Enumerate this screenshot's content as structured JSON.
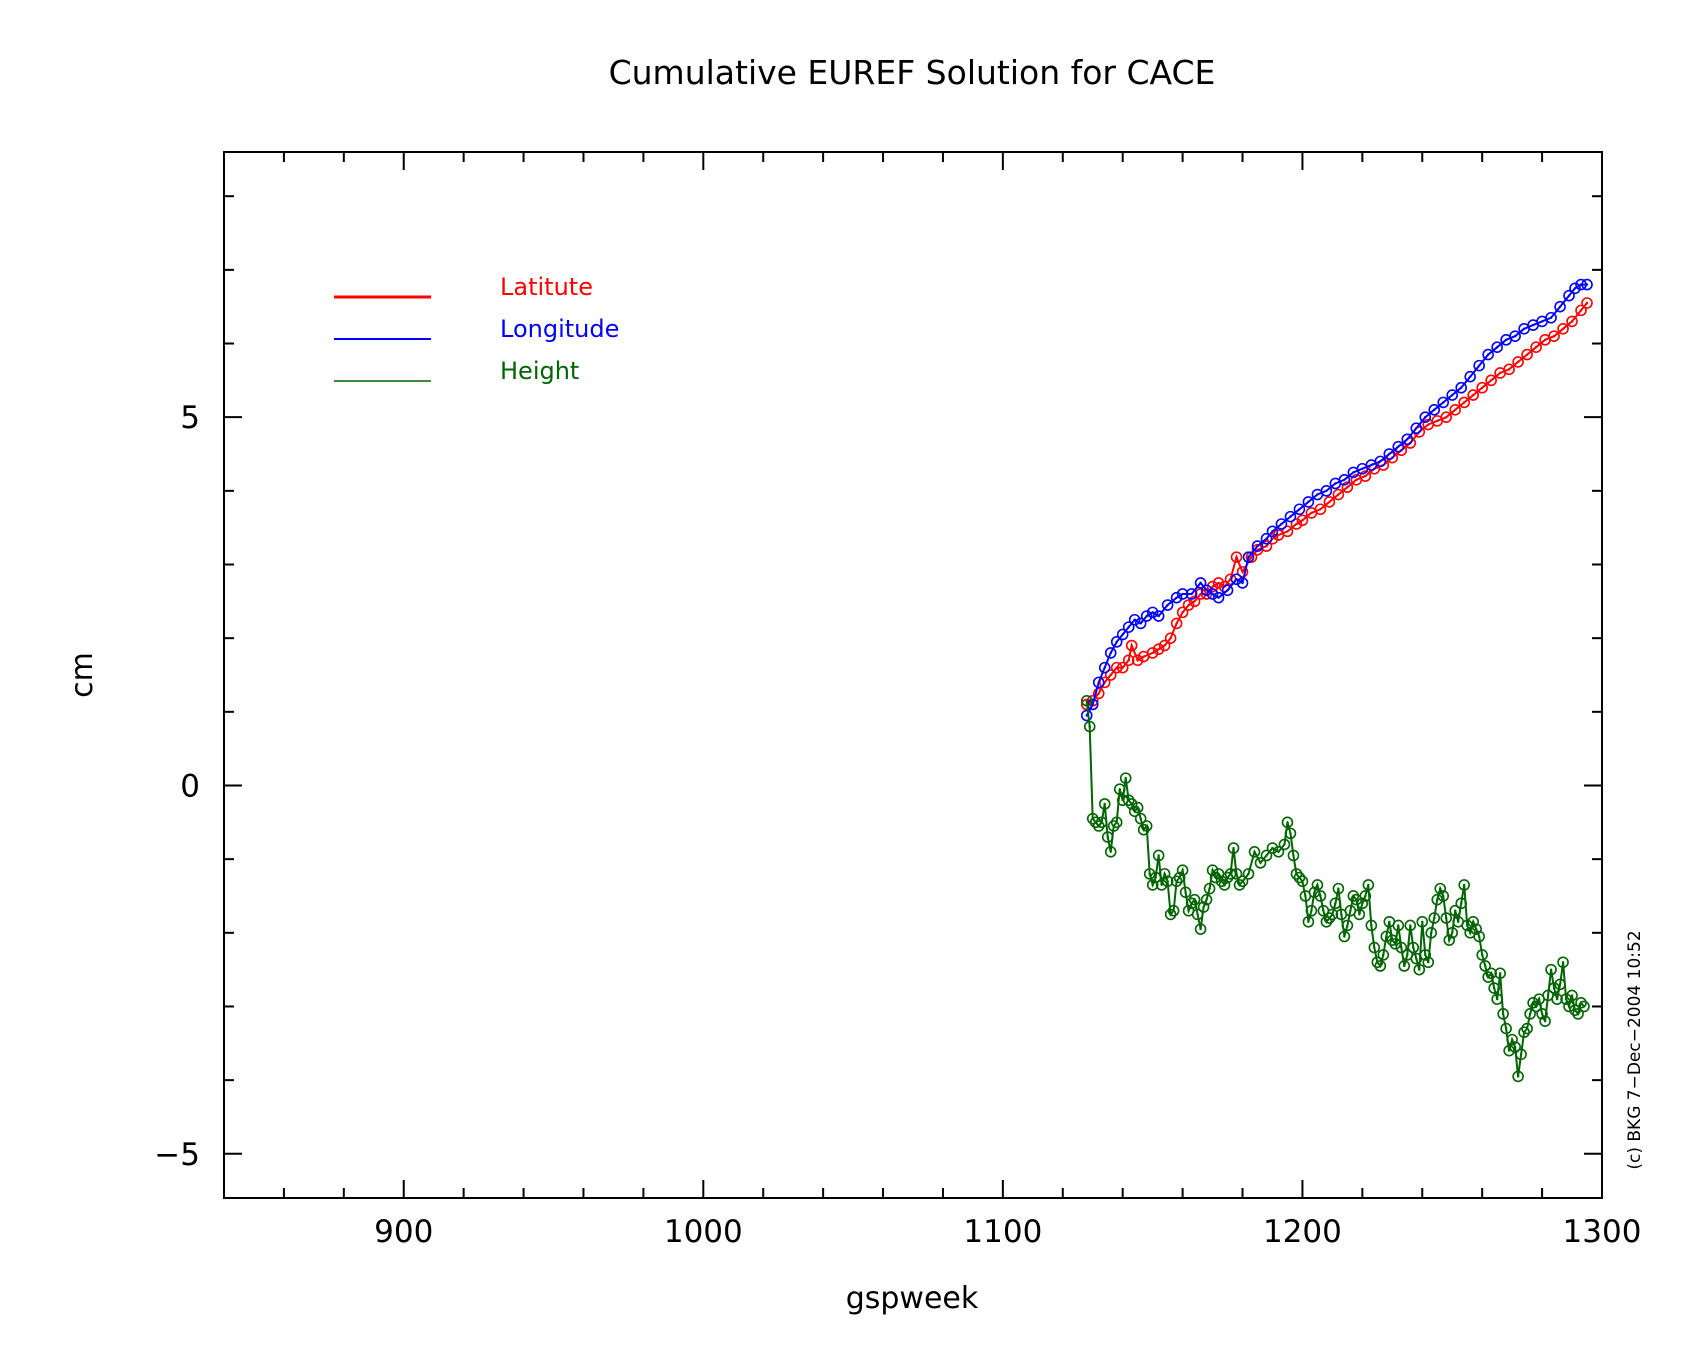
{
  "chart_data": {
    "type": "line",
    "title": "Cumulative EUREF Solution for CACE",
    "xlabel": "gspweek",
    "ylabel": "cm",
    "xlim": [
      840,
      1300
    ],
    "ylim": [
      -5.6,
      8.6
    ],
    "x_ticks": [
      900,
      1000,
      1100,
      1200,
      1300
    ],
    "x_tick_labels": [
      "900",
      "1000",
      "1100",
      "1200",
      "1300"
    ],
    "y_ticks": [
      -5,
      0,
      5
    ],
    "y_tick_labels": [
      "−5",
      "0",
      "5"
    ],
    "grid": false,
    "legend_position": "top-left",
    "credit": "(c) BKG 7−Dec−2004 10:52",
    "series": [
      {
        "name": "Latitute",
        "color": "#ff0000",
        "marker": "circle",
        "points": [
          [
            1128,
            1.1
          ],
          [
            1130,
            1.15
          ],
          [
            1132,
            1.25
          ],
          [
            1134,
            1.4
          ],
          [
            1136,
            1.5
          ],
          [
            1138,
            1.6
          ],
          [
            1140,
            1.6
          ],
          [
            1142,
            1.7
          ],
          [
            1143,
            1.9
          ],
          [
            1145,
            1.7
          ],
          [
            1147,
            1.75
          ],
          [
            1150,
            1.8
          ],
          [
            1152,
            1.85
          ],
          [
            1154,
            1.9
          ],
          [
            1156,
            2.0
          ],
          [
            1158,
            2.2
          ],
          [
            1160,
            2.35
          ],
          [
            1162,
            2.45
          ],
          [
            1164,
            2.5
          ],
          [
            1166,
            2.6
          ],
          [
            1168,
            2.6
          ],
          [
            1170,
            2.7
          ],
          [
            1172,
            2.75
          ],
          [
            1174,
            2.7
          ],
          [
            1176,
            2.8
          ],
          [
            1178,
            3.1
          ],
          [
            1180,
            2.9
          ],
          [
            1183,
            3.1
          ],
          [
            1185,
            3.2
          ],
          [
            1188,
            3.25
          ],
          [
            1190,
            3.35
          ],
          [
            1192,
            3.4
          ],
          [
            1195,
            3.45
          ],
          [
            1198,
            3.55
          ],
          [
            1200,
            3.6
          ],
          [
            1203,
            3.7
          ],
          [
            1206,
            3.75
          ],
          [
            1209,
            3.85
          ],
          [
            1212,
            3.95
          ],
          [
            1215,
            4.05
          ],
          [
            1218,
            4.15
          ],
          [
            1221,
            4.2
          ],
          [
            1224,
            4.3
          ],
          [
            1227,
            4.35
          ],
          [
            1230,
            4.45
          ],
          [
            1233,
            4.55
          ],
          [
            1236,
            4.65
          ],
          [
            1239,
            4.8
          ],
          [
            1242,
            4.9
          ],
          [
            1245,
            4.95
          ],
          [
            1248,
            5.0
          ],
          [
            1251,
            5.1
          ],
          [
            1254,
            5.2
          ],
          [
            1257,
            5.3
          ],
          [
            1260,
            5.4
          ],
          [
            1263,
            5.5
          ],
          [
            1266,
            5.6
          ],
          [
            1269,
            5.65
          ],
          [
            1272,
            5.75
          ],
          [
            1275,
            5.85
          ],
          [
            1278,
            5.95
          ],
          [
            1281,
            6.05
          ],
          [
            1284,
            6.1
          ],
          [
            1287,
            6.2
          ],
          [
            1290,
            6.3
          ],
          [
            1293,
            6.45
          ],
          [
            1295,
            6.55
          ]
        ]
      },
      {
        "name": "Longitude",
        "color": "#0000ff",
        "marker": "circle",
        "points": [
          [
            1128,
            0.95
          ],
          [
            1130,
            1.1
          ],
          [
            1132,
            1.4
          ],
          [
            1134,
            1.6
          ],
          [
            1136,
            1.8
          ],
          [
            1138,
            1.95
          ],
          [
            1140,
            2.05
          ],
          [
            1142,
            2.15
          ],
          [
            1144,
            2.25
          ],
          [
            1146,
            2.2
          ],
          [
            1148,
            2.3
          ],
          [
            1150,
            2.35
          ],
          [
            1152,
            2.3
          ],
          [
            1155,
            2.45
          ],
          [
            1158,
            2.55
          ],
          [
            1160,
            2.6
          ],
          [
            1163,
            2.6
          ],
          [
            1166,
            2.75
          ],
          [
            1168,
            2.65
          ],
          [
            1170,
            2.6
          ],
          [
            1172,
            2.55
          ],
          [
            1175,
            2.65
          ],
          [
            1178,
            2.8
          ],
          [
            1180,
            2.75
          ],
          [
            1182,
            3.1
          ],
          [
            1185,
            3.25
          ],
          [
            1188,
            3.35
          ],
          [
            1190,
            3.45
          ],
          [
            1193,
            3.55
          ],
          [
            1196,
            3.65
          ],
          [
            1199,
            3.75
          ],
          [
            1202,
            3.85
          ],
          [
            1205,
            3.95
          ],
          [
            1208,
            4.0
          ],
          [
            1211,
            4.1
          ],
          [
            1214,
            4.15
          ],
          [
            1217,
            4.25
          ],
          [
            1220,
            4.3
          ],
          [
            1223,
            4.35
          ],
          [
            1226,
            4.4
          ],
          [
            1229,
            4.5
          ],
          [
            1232,
            4.6
          ],
          [
            1235,
            4.7
          ],
          [
            1238,
            4.85
          ],
          [
            1241,
            5.0
          ],
          [
            1244,
            5.1
          ],
          [
            1247,
            5.2
          ],
          [
            1250,
            5.3
          ],
          [
            1253,
            5.4
          ],
          [
            1256,
            5.55
          ],
          [
            1259,
            5.7
          ],
          [
            1262,
            5.85
          ],
          [
            1265,
            5.95
          ],
          [
            1268,
            6.05
          ],
          [
            1271,
            6.1
          ],
          [
            1274,
            6.2
          ],
          [
            1277,
            6.25
          ],
          [
            1280,
            6.3
          ],
          [
            1283,
            6.35
          ],
          [
            1286,
            6.5
          ],
          [
            1289,
            6.65
          ],
          [
            1291,
            6.75
          ],
          [
            1293,
            6.8
          ],
          [
            1295,
            6.8
          ]
        ]
      },
      {
        "name": "Height",
        "color": "#006400",
        "marker": "circle",
        "points": [
          [
            1128,
            1.15
          ],
          [
            1129,
            0.8
          ],
          [
            1130,
            -0.45
          ],
          [
            1131,
            -0.5
          ],
          [
            1132,
            -0.55
          ],
          [
            1133,
            -0.5
          ],
          [
            1134,
            -0.25
          ],
          [
            1135,
            -0.7
          ],
          [
            1136,
            -0.9
          ],
          [
            1137,
            -0.55
          ],
          [
            1138,
            -0.5
          ],
          [
            1139,
            -0.05
          ],
          [
            1140,
            -0.2
          ],
          [
            1141,
            0.1
          ],
          [
            1142,
            -0.2
          ],
          [
            1143,
            -0.25
          ],
          [
            1144,
            -0.35
          ],
          [
            1145,
            -0.3
          ],
          [
            1146,
            -0.45
          ],
          [
            1147,
            -0.6
          ],
          [
            1148,
            -0.55
          ],
          [
            1149,
            -1.2
          ],
          [
            1150,
            -1.35
          ],
          [
            1151,
            -1.25
          ],
          [
            1152,
            -0.95
          ],
          [
            1153,
            -1.35
          ],
          [
            1154,
            -1.2
          ],
          [
            1155,
            -1.3
          ],
          [
            1156,
            -1.75
          ],
          [
            1157,
            -1.7
          ],
          [
            1158,
            -1.3
          ],
          [
            1159,
            -1.25
          ],
          [
            1160,
            -1.15
          ],
          [
            1161,
            -1.45
          ],
          [
            1162,
            -1.7
          ],
          [
            1163,
            -1.6
          ],
          [
            1164,
            -1.55
          ],
          [
            1165,
            -1.75
          ],
          [
            1166,
            -1.95
          ],
          [
            1167,
            -1.65
          ],
          [
            1168,
            -1.55
          ],
          [
            1169,
            -1.4
          ],
          [
            1170,
            -1.15
          ],
          [
            1171,
            -1.25
          ],
          [
            1172,
            -1.2
          ],
          [
            1173,
            -1.3
          ],
          [
            1174,
            -1.35
          ],
          [
            1175,
            -1.25
          ],
          [
            1176,
            -1.2
          ],
          [
            1177,
            -0.85
          ],
          [
            1178,
            -1.2
          ],
          [
            1179,
            -1.35
          ],
          [
            1180,
            -1.3
          ],
          [
            1182,
            -1.2
          ],
          [
            1184,
            -0.9
          ],
          [
            1186,
            -1.05
          ],
          [
            1188,
            -0.95
          ],
          [
            1190,
            -0.85
          ],
          [
            1192,
            -0.9
          ],
          [
            1194,
            -0.8
          ],
          [
            1195,
            -0.5
          ],
          [
            1196,
            -0.65
          ],
          [
            1197,
            -0.95
          ],
          [
            1198,
            -1.2
          ],
          [
            1199,
            -1.25
          ],
          [
            1200,
            -1.3
          ],
          [
            1201,
            -1.5
          ],
          [
            1202,
            -1.85
          ],
          [
            1203,
            -1.7
          ],
          [
            1204,
            -1.45
          ],
          [
            1205,
            -1.35
          ],
          [
            1206,
            -1.5
          ],
          [
            1207,
            -1.7
          ],
          [
            1208,
            -1.85
          ],
          [
            1209,
            -1.8
          ],
          [
            1210,
            -1.75
          ],
          [
            1211,
            -1.6
          ],
          [
            1212,
            -1.4
          ],
          [
            1213,
            -1.75
          ],
          [
            1214,
            -2.05
          ],
          [
            1215,
            -1.9
          ],
          [
            1216,
            -1.7
          ],
          [
            1217,
            -1.5
          ],
          [
            1218,
            -1.55
          ],
          [
            1219,
            -1.75
          ],
          [
            1220,
            -1.6
          ],
          [
            1221,
            -1.5
          ],
          [
            1222,
            -1.35
          ],
          [
            1223,
            -1.9
          ],
          [
            1224,
            -2.2
          ],
          [
            1225,
            -2.4
          ],
          [
            1226,
            -2.45
          ],
          [
            1227,
            -2.3
          ],
          [
            1228,
            -2.05
          ],
          [
            1229,
            -1.85
          ],
          [
            1230,
            -2.1
          ],
          [
            1231,
            -2.15
          ],
          [
            1232,
            -1.9
          ],
          [
            1233,
            -2.2
          ],
          [
            1234,
            -2.45
          ],
          [
            1235,
            -2.3
          ],
          [
            1236,
            -1.9
          ],
          [
            1237,
            -2.2
          ],
          [
            1238,
            -2.35
          ],
          [
            1239,
            -2.5
          ],
          [
            1240,
            -1.85
          ],
          [
            1241,
            -2.3
          ],
          [
            1242,
            -2.4
          ],
          [
            1243,
            -2.0
          ],
          [
            1244,
            -1.8
          ],
          [
            1245,
            -1.55
          ],
          [
            1246,
            -1.4
          ],
          [
            1247,
            -1.5
          ],
          [
            1248,
            -1.8
          ],
          [
            1249,
            -2.1
          ],
          [
            1250,
            -2.0
          ],
          [
            1251,
            -1.7
          ],
          [
            1252,
            -1.85
          ],
          [
            1253,
            -1.6
          ],
          [
            1254,
            -1.35
          ],
          [
            1255,
            -1.9
          ],
          [
            1256,
            -2.0
          ],
          [
            1257,
            -1.85
          ],
          [
            1258,
            -1.95
          ],
          [
            1259,
            -2.05
          ],
          [
            1260,
            -2.3
          ],
          [
            1261,
            -2.45
          ],
          [
            1262,
            -2.6
          ],
          [
            1263,
            -2.55
          ],
          [
            1264,
            -2.75
          ],
          [
            1265,
            -2.9
          ],
          [
            1266,
            -2.55
          ],
          [
            1267,
            -3.1
          ],
          [
            1268,
            -3.3
          ],
          [
            1269,
            -3.6
          ],
          [
            1270,
            -3.45
          ],
          [
            1271,
            -3.55
          ],
          [
            1272,
            -3.95
          ],
          [
            1273,
            -3.65
          ],
          [
            1274,
            -3.35
          ],
          [
            1275,
            -3.3
          ],
          [
            1276,
            -3.1
          ],
          [
            1277,
            -2.95
          ],
          [
            1278,
            -3.0
          ],
          [
            1279,
            -2.9
          ],
          [
            1280,
            -3.1
          ],
          [
            1281,
            -3.2
          ],
          [
            1282,
            -2.85
          ],
          [
            1283,
            -2.5
          ],
          [
            1284,
            -2.75
          ],
          [
            1285,
            -2.9
          ],
          [
            1286,
            -2.7
          ],
          [
            1287,
            -2.4
          ],
          [
            1288,
            -2.9
          ],
          [
            1289,
            -3.0
          ],
          [
            1290,
            -2.85
          ],
          [
            1291,
            -3.05
          ],
          [
            1292,
            -3.1
          ],
          [
            1293,
            -2.95
          ],
          [
            1294,
            -3.0
          ]
        ]
      }
    ]
  }
}
